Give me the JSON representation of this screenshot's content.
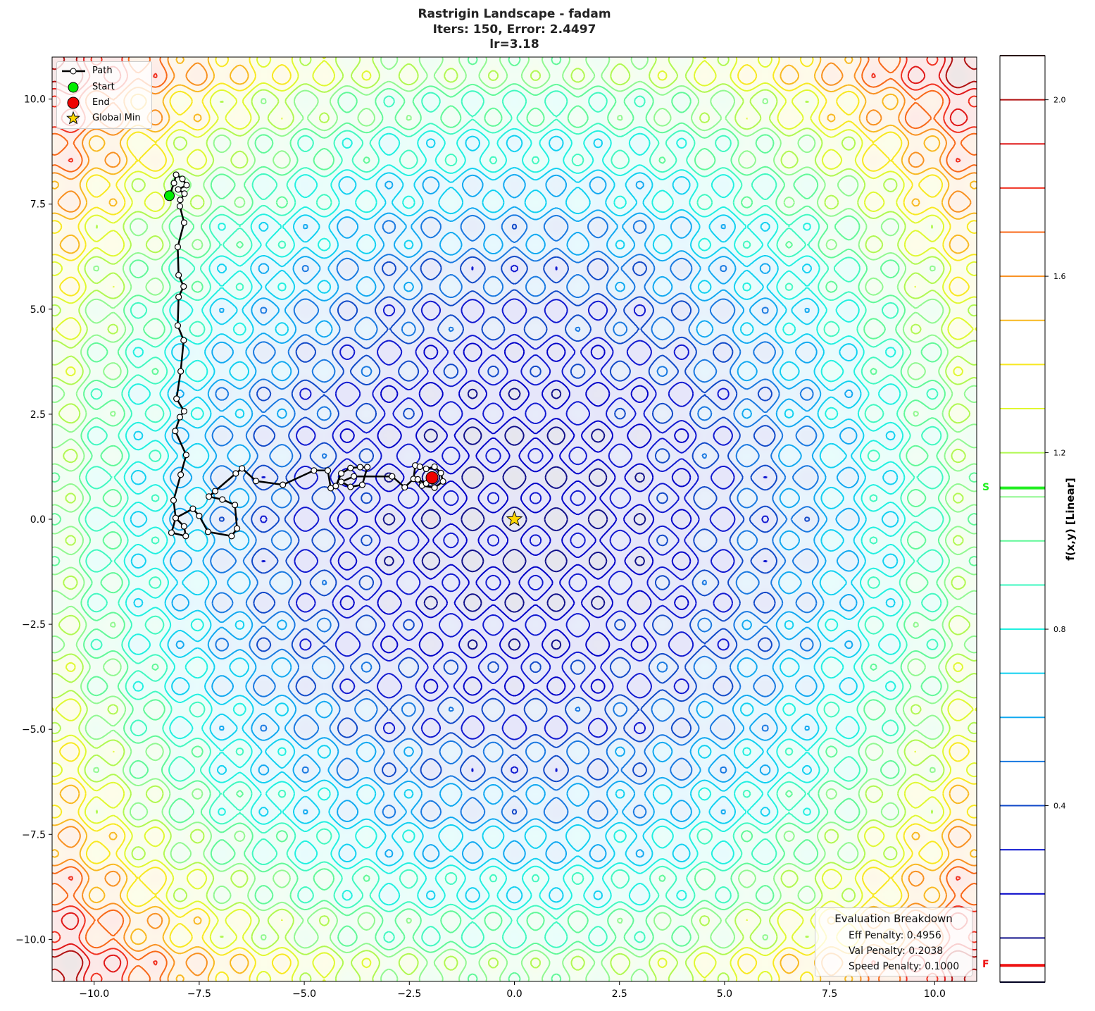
{
  "title_lines": [
    "Rastrigin Landscape - fadam",
    "Iters: 150, Error: 2.4497",
    "lr=3.18"
  ],
  "legend": {
    "path": "Path",
    "start": "Start",
    "end": "End",
    "global_min": "Global Min"
  },
  "evaluation": {
    "title": "Evaluation Breakdown",
    "lines": [
      "Eff Penalty: 0.4956",
      "Val Penalty: 0.2038",
      "Speed Penalty: 0.1000"
    ]
  },
  "colorbar": {
    "label": "f(x,y) [Linear]",
    "range": [
      0,
      2.1
    ],
    "ticks": [
      "0.4",
      "0.8",
      "1.2",
      "1.6",
      "2.0"
    ],
    "tick_values": [
      0.4,
      0.8,
      1.2,
      1.6,
      2.0
    ],
    "marker_s": {
      "label": "S",
      "value": 1.12,
      "color": "#22ee22"
    },
    "marker_f": {
      "label": "F",
      "value": 0.038,
      "color": "#ee1111"
    }
  },
  "chart_data": {
    "type": "contour",
    "function": "rastrigin",
    "xlim": [
      -11,
      11
    ],
    "ylim": [
      -11,
      11
    ],
    "xticks": [
      "−10.0",
      "−7.5",
      "−5.0",
      "−2.5",
      "0.0",
      "2.5",
      "5.0",
      "7.5",
      "10.0"
    ],
    "xtick_values": [
      -10,
      -7.5,
      -5,
      -2.5,
      0,
      2.5,
      5,
      7.5,
      10
    ],
    "yticks": [
      "−10.0",
      "−7.5",
      "−5.0",
      "−2.5",
      "0.0",
      "2.5",
      "5.0",
      "7.5",
      "10.0"
    ],
    "ytick_values": [
      -10,
      -7.5,
      -5,
      -2.5,
      0,
      2.5,
      5,
      7.5,
      10
    ],
    "level_step": 0.1,
    "colors": [
      "#000040",
      "#10108a",
      "#0000c8",
      "#1018d0",
      "#1048c8",
      "#1878e0",
      "#10a8f0",
      "#10d0f0",
      "#20f0e0",
      "#40f8c0",
      "#60f898",
      "#90f890",
      "#b0f850",
      "#e0f830",
      "#f8e820",
      "#f8b820",
      "#f89020",
      "#f86818",
      "#f03020",
      "#e01818",
      "#b01010",
      "#501010"
    ],
    "start": [
      -8.21,
      7.7
    ],
    "end": [
      -1.96,
      0.99
    ],
    "global_min": [
      0,
      0
    ],
    "path": [
      [
        -8.21,
        7.7
      ],
      [
        -8.1,
        8.0
      ],
      [
        -8.05,
        8.2
      ],
      [
        -7.9,
        8.1
      ],
      [
        -7.8,
        7.95
      ],
      [
        -8.0,
        7.85
      ],
      [
        -7.85,
        7.75
      ],
      [
        -7.95,
        7.6
      ],
      [
        -7.96,
        7.45
      ],
      [
        -7.86,
        7.06
      ],
      [
        -8.01,
        6.48
      ],
      [
        -7.99,
        5.81
      ],
      [
        -7.87,
        5.54
      ],
      [
        -7.99,
        5.29
      ],
      [
        -8.01,
        4.61
      ],
      [
        -7.87,
        4.26
      ],
      [
        -7.94,
        3.52
      ],
      [
        -8.04,
        2.87
      ],
      [
        -7.86,
        2.57
      ],
      [
        -7.96,
        2.43
      ],
      [
        -8.07,
        2.1
      ],
      [
        -7.81,
        1.53
      ],
      [
        -7.94,
        1.06
      ],
      [
        -8.11,
        0.45
      ],
      [
        -8.06,
        0.03
      ],
      [
        -7.86,
        -0.17
      ],
      [
        -7.82,
        -0.4
      ],
      [
        -8.16,
        -0.32
      ],
      [
        -8.06,
        0.03
      ],
      [
        -7.65,
        0.25
      ],
      [
        -7.5,
        0.08
      ],
      [
        -7.29,
        -0.3
      ],
      [
        -6.73,
        -0.4
      ],
      [
        -6.6,
        -0.22
      ],
      [
        -6.65,
        0.34
      ],
      [
        -6.95,
        0.47
      ],
      [
        -7.27,
        0.54
      ],
      [
        -7.12,
        0.67
      ],
      [
        -6.63,
        1.09
      ],
      [
        -6.48,
        1.21
      ],
      [
        -6.15,
        0.91
      ],
      [
        -5.51,
        0.82
      ],
      [
        -4.77,
        1.16
      ],
      [
        -4.44,
        1.16
      ],
      [
        -4.37,
        0.74
      ],
      [
        -4.25,
        0.79
      ],
      [
        -4.12,
        1.09
      ],
      [
        -3.9,
        1.22
      ],
      [
        -3.67,
        1.24
      ],
      [
        -3.5,
        1.24
      ],
      [
        -3.62,
        0.82
      ],
      [
        -3.9,
        0.77
      ],
      [
        -4.12,
        0.89
      ],
      [
        -3.82,
        1.02
      ],
      [
        -2.91,
        1.02
      ],
      [
        -2.61,
        0.76
      ],
      [
        -2.4,
        0.96
      ],
      [
        -2.36,
        1.28
      ],
      [
        -2.25,
        1.25
      ],
      [
        -2.1,
        1.2
      ],
      [
        -1.9,
        1.25
      ],
      [
        -1.75,
        1.1
      ],
      [
        -1.7,
        0.9
      ],
      [
        -1.9,
        0.75
      ],
      [
        -2.2,
        0.8
      ],
      [
        -2.3,
        0.95
      ],
      [
        -2.1,
        0.85
      ],
      [
        -1.95,
        0.9
      ],
      [
        -1.96,
        0.99
      ]
    ]
  }
}
